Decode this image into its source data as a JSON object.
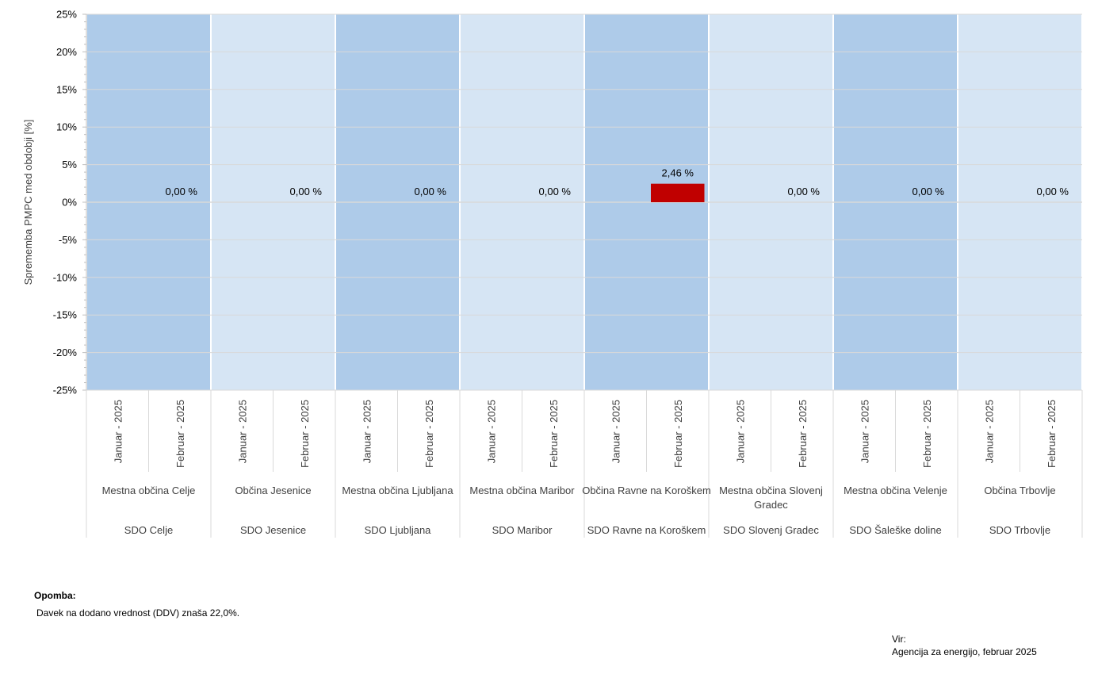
{
  "chart_data": {
    "type": "bar",
    "ylabel": "Sprememba PMPC med obdobji [%]",
    "ylim": [
      -25,
      25
    ],
    "y_ticks": [
      "25%",
      "20%",
      "15%",
      "10%",
      "5%",
      "0%",
      "-5%",
      "-10%",
      "-15%",
      "-20%",
      "-25%"
    ],
    "y_tick_values": [
      25,
      20,
      15,
      10,
      5,
      0,
      -5,
      -10,
      -15,
      -20,
      -25
    ],
    "bar_color": "#c00000",
    "band_colors": [
      "#aecbe9",
      "#d6e5f4"
    ],
    "groups": [
      {
        "sdo": "SDO Celje",
        "obcina": "Mestna občina Celje",
        "periods": [
          "Januar - 2025",
          "Februar - 2025"
        ],
        "values": [
          null,
          0.0
        ],
        "labels": [
          "",
          "0,00 %"
        ]
      },
      {
        "sdo": "SDO Jesenice",
        "obcina": "Občina Jesenice",
        "periods": [
          "Januar - 2025",
          "Februar - 2025"
        ],
        "values": [
          null,
          0.0
        ],
        "labels": [
          "",
          "0,00 %"
        ]
      },
      {
        "sdo": "SDO Ljubljana",
        "obcina": "Mestna občina Ljubljana",
        "periods": [
          "Januar - 2025",
          "Februar - 2025"
        ],
        "values": [
          null,
          0.0
        ],
        "labels": [
          "",
          "0,00 %"
        ]
      },
      {
        "sdo": "SDO Maribor",
        "obcina": "Mestna občina Maribor",
        "periods": [
          "Januar - 2025",
          "Februar - 2025"
        ],
        "values": [
          null,
          0.0
        ],
        "labels": [
          "",
          "0,00 %"
        ]
      },
      {
        "sdo": "SDO Ravne na Koroškem",
        "obcina": "Občina Ravne na Koroškem",
        "periods": [
          "Januar - 2025",
          "Februar - 2025"
        ],
        "values": [
          null,
          2.46
        ],
        "labels": [
          "",
          "2,46 %"
        ]
      },
      {
        "sdo": "SDO Slovenj Gradec",
        "obcina": "Mestna občina Slovenj Gradec",
        "periods": [
          "Januar - 2025",
          "Februar - 2025"
        ],
        "values": [
          null,
          0.0
        ],
        "labels": [
          "",
          "0,00 %"
        ]
      },
      {
        "sdo": "SDO Šaleške doline",
        "obcina": "Mestna občina Velenje",
        "periods": [
          "Januar - 2025",
          "Februar - 2025"
        ],
        "values": [
          null,
          0.0
        ],
        "labels": [
          "",
          "0,00 %"
        ]
      },
      {
        "sdo": "SDO Trbovlje",
        "obcina": "Občina Trbovlje",
        "periods": [
          "Januar - 2025",
          "Februar - 2025"
        ],
        "values": [
          null,
          0.0
        ],
        "labels": [
          "",
          "0,00 %"
        ]
      }
    ]
  },
  "notes": {
    "title": "Opomba:",
    "text": "Davek na dodano vrednost (DDV) znaša 22,0%."
  },
  "source": {
    "title": "Vir:",
    "text": "Agencija za energijo, februar 2025"
  }
}
